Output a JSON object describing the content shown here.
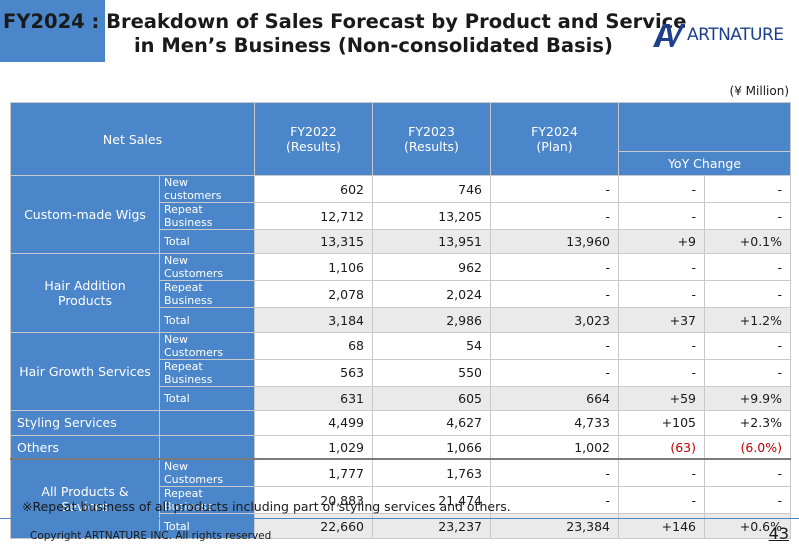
{
  "title": {
    "line1": "FY2024 : Breakdown of Sales Forecast by Product and Service",
    "line2": "in Men’s Business (Non-consolidated Basis)"
  },
  "logo": {
    "text": "ARTNATURE",
    "icon": "artnature-logo-icon",
    "color": "#1d3f8c"
  },
  "unit": "(¥ Million)",
  "colors": {
    "header": "#4a86c9",
    "total_row": "#eaeaea",
    "negative": "#c00000"
  },
  "table": {
    "headers": {
      "net_sales": "Net Sales",
      "fy2022": [
        "FY2022",
        "(Results)"
      ],
      "fy2023": [
        "FY2023",
        "(Results)"
      ],
      "fy2024": [
        "FY2024",
        "(Plan)"
      ],
      "yoy": "YoY Change"
    },
    "groups": [
      {
        "name": "Custom-made Wigs",
        "rows": [
          {
            "label": "New customers",
            "fy2022": "602",
            "fy2023": "746",
            "fy2024": "-",
            "change": "-",
            "pct": "-"
          },
          {
            "label": "Repeat Business",
            "fy2022": "12,712",
            "fy2023": "13,205",
            "fy2024": "-",
            "change": "-",
            "pct": "-"
          },
          {
            "label": "Total",
            "fy2022": "13,315",
            "fy2023": "13,951",
            "fy2024": "13,960",
            "change": "+9",
            "pct": "+0.1%"
          }
        ]
      },
      {
        "name": "Hair Addition Products",
        "rows": [
          {
            "label": "New Customers",
            "fy2022": "1,106",
            "fy2023": "962",
            "fy2024": "-",
            "change": "-",
            "pct": "-"
          },
          {
            "label": "Repeat Business",
            "fy2022": "2,078",
            "fy2023": "2,024",
            "fy2024": "-",
            "change": "-",
            "pct": "-"
          },
          {
            "label": "Total",
            "fy2022": "3,184",
            "fy2023": "2,986",
            "fy2024": "3,023",
            "change": "+37",
            "pct": "+1.2%"
          }
        ]
      },
      {
        "name": "Hair Growth Services",
        "rows": [
          {
            "label": "New Customers",
            "fy2022": "68",
            "fy2023": "54",
            "fy2024": "-",
            "change": "-",
            "pct": "-"
          },
          {
            "label": "Repeat Business",
            "fy2022": "563",
            "fy2023": "550",
            "fy2024": "-",
            "change": "-",
            "pct": "-"
          },
          {
            "label": "Total",
            "fy2022": "631",
            "fy2023": "605",
            "fy2024": "664",
            "change": "+59",
            "pct": "+9.9%"
          }
        ]
      }
    ],
    "singles": [
      {
        "name": "Styling Services",
        "fy2022": "4,499",
        "fy2023": "4,627",
        "fy2024": "4,733",
        "change": "+105",
        "pct": "+2.3%"
      },
      {
        "name": "Others",
        "fy2022": "1,029",
        "fy2023": "1,066",
        "fy2024": "1,002",
        "change": "(63)",
        "pct": "(6.0%)"
      }
    ],
    "all": {
      "name": "All Products & Sevices",
      "rows": [
        {
          "label": "New Customers",
          "fy2022": "1,777",
          "fy2023": "1,763",
          "fy2024": "-",
          "change": "-",
          "pct": "-"
        },
        {
          "label": "Repeat Business",
          "fy2022": "20,883",
          "fy2023": "21,474",
          "fy2024": "-",
          "change": "-",
          "pct": "-"
        },
        {
          "label": "Total",
          "fy2022": "22,660",
          "fy2023": "23,237",
          "fy2024": "23,384",
          "change": "+146",
          "pct": "+0.6%"
        }
      ]
    }
  },
  "note": "※Repeat business of all products including part of styling services and others.",
  "footer": {
    "copyright": "Copyright ARTNATURE INC. All rights reserved",
    "page": "43"
  }
}
